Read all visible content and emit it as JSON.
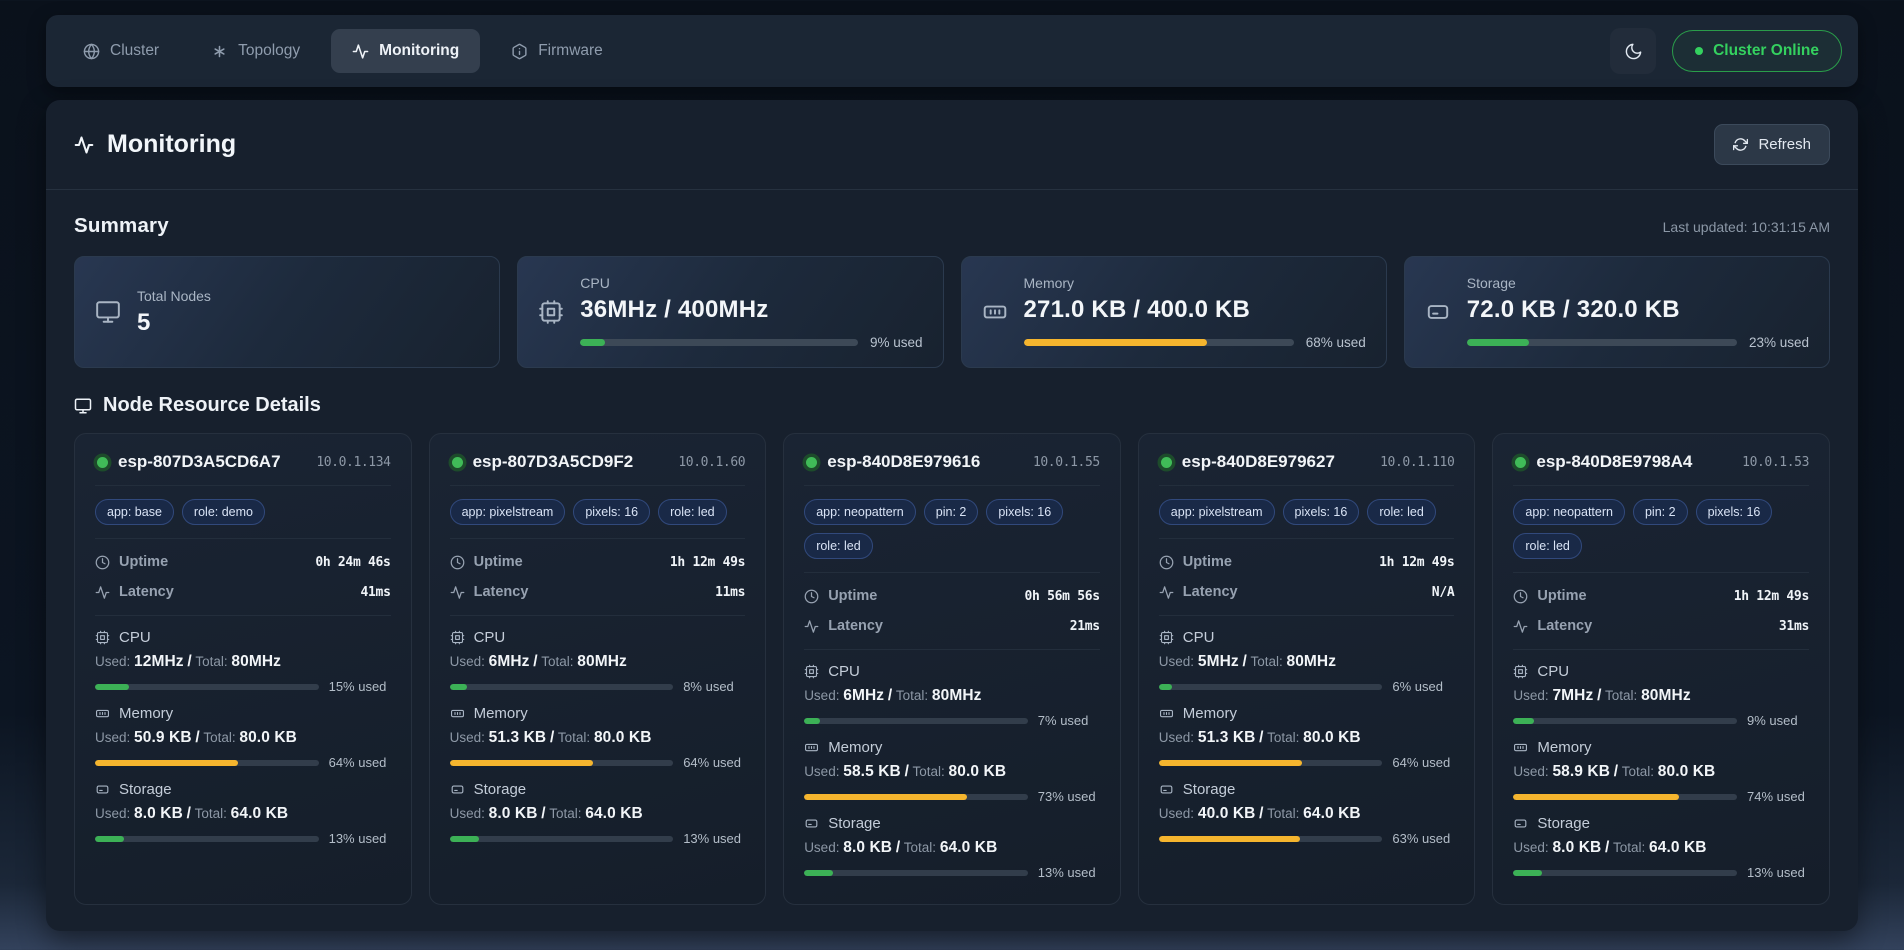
{
  "theme": {
    "accent_green": "#3cb156",
    "accent_amber": "#f5b52e",
    "online_green": "#34d15f"
  },
  "icons": {
    "nav": [
      "globe-icon",
      "asterisk-icon",
      "activity-icon",
      "hexagon-info-icon"
    ],
    "theme_toggle": "moon-icon",
    "refresh": "refresh-icon",
    "summary": [
      "monitor-icon",
      "cpu-icon",
      "memory-icon",
      "hard-drive-icon"
    ],
    "node_rows": [
      "clock-icon",
      "activity-icon"
    ],
    "status_dot": "online-dot"
  },
  "nav": {
    "tabs": [
      {
        "label": "Cluster",
        "active": false
      },
      {
        "label": "Topology",
        "active": false
      },
      {
        "label": "Monitoring",
        "active": true
      },
      {
        "label": "Firmware",
        "active": false
      }
    ],
    "status_badge": "Cluster Online"
  },
  "page": {
    "title": "Monitoring",
    "refresh_label": "Refresh"
  },
  "summary": {
    "heading": "Summary",
    "last_updated": "Last updated: 10:31:15 AM",
    "cards": [
      {
        "label": "Total Nodes",
        "value": "5"
      },
      {
        "label": "CPU",
        "value": "36MHz / 400MHz",
        "percent": 9,
        "percent_label": "9% used",
        "color": "green"
      },
      {
        "label": "Memory",
        "value": "271.0 KB / 400.0 KB",
        "percent": 68,
        "percent_label": "68% used",
        "color": "amber"
      },
      {
        "label": "Storage",
        "value": "72.0 KB / 320.0 KB",
        "percent": 23,
        "percent_label": "23% used",
        "color": "green"
      }
    ]
  },
  "nodes": {
    "heading": "Node Resource Details",
    "labels": {
      "uptime": "Uptime",
      "latency": "Latency",
      "used": "Used:",
      "total": "Total:",
      "sep": "/"
    },
    "cards": [
      {
        "name": "esp-807D3A5CD6A7",
        "ip": "10.0.1.134",
        "tags": [
          "app: base",
          "role: demo"
        ],
        "uptime": "0h 24m 46s",
        "latency": "41ms",
        "metrics": [
          {
            "label": "CPU",
            "used": "12MHz",
            "total": "80MHz",
            "percent": 15,
            "percent_label": "15% used",
            "color": "green"
          },
          {
            "label": "Memory",
            "used": "50.9 KB",
            "total": "80.0 KB",
            "percent": 64,
            "percent_label": "64% used",
            "color": "amber"
          },
          {
            "label": "Storage",
            "used": "8.0 KB",
            "total": "64.0 KB",
            "percent": 13,
            "percent_label": "13% used",
            "color": "green"
          }
        ]
      },
      {
        "name": "esp-807D3A5CD9F2",
        "ip": "10.0.1.60",
        "tags": [
          "app: pixelstream",
          "pixels: 16",
          "role: led"
        ],
        "uptime": "1h 12m 49s",
        "latency": "11ms",
        "metrics": [
          {
            "label": "CPU",
            "used": "6MHz",
            "total": "80MHz",
            "percent": 8,
            "percent_label": "8% used",
            "color": "green"
          },
          {
            "label": "Memory",
            "used": "51.3 KB",
            "total": "80.0 KB",
            "percent": 64,
            "percent_label": "64% used",
            "color": "amber"
          },
          {
            "label": "Storage",
            "used": "8.0 KB",
            "total": "64.0 KB",
            "percent": 13,
            "percent_label": "13% used",
            "color": "green"
          }
        ]
      },
      {
        "name": "esp-840D8E979616",
        "ip": "10.0.1.55",
        "tags": [
          "app: neopattern",
          "pin: 2",
          "pixels: 16",
          "role: led"
        ],
        "uptime": "0h 56m 56s",
        "latency": "21ms",
        "metrics": [
          {
            "label": "CPU",
            "used": "6MHz",
            "total": "80MHz",
            "percent": 7,
            "percent_label": "7% used",
            "color": "green"
          },
          {
            "label": "Memory",
            "used": "58.5 KB",
            "total": "80.0 KB",
            "percent": 73,
            "percent_label": "73% used",
            "color": "amber"
          },
          {
            "label": "Storage",
            "used": "8.0 KB",
            "total": "64.0 KB",
            "percent": 13,
            "percent_label": "13% used",
            "color": "green"
          }
        ]
      },
      {
        "name": "esp-840D8E979627",
        "ip": "10.0.1.110",
        "tags": [
          "app: pixelstream",
          "pixels: 16",
          "role: led"
        ],
        "uptime": "1h 12m 49s",
        "latency": "N/A",
        "metrics": [
          {
            "label": "CPU",
            "used": "5MHz",
            "total": "80MHz",
            "percent": 6,
            "percent_label": "6% used",
            "color": "green"
          },
          {
            "label": "Memory",
            "used": "51.3 KB",
            "total": "80.0 KB",
            "percent": 64,
            "percent_label": "64% used",
            "color": "amber"
          },
          {
            "label": "Storage",
            "used": "40.0 KB",
            "total": "64.0 KB",
            "percent": 63,
            "percent_label": "63% used",
            "color": "amber"
          }
        ]
      },
      {
        "name": "esp-840D8E9798A4",
        "ip": "10.0.1.53",
        "tags": [
          "app: neopattern",
          "pin: 2",
          "pixels: 16",
          "role: led"
        ],
        "uptime": "1h 12m 49s",
        "latency": "31ms",
        "metrics": [
          {
            "label": "CPU",
            "used": "7MHz",
            "total": "80MHz",
            "percent": 9,
            "percent_label": "9% used",
            "color": "green"
          },
          {
            "label": "Memory",
            "used": "58.9 KB",
            "total": "80.0 KB",
            "percent": 74,
            "percent_label": "74% used",
            "color": "amber"
          },
          {
            "label": "Storage",
            "used": "8.0 KB",
            "total": "64.0 KB",
            "percent": 13,
            "percent_label": "13% used",
            "color": "green"
          }
        ]
      }
    ]
  }
}
